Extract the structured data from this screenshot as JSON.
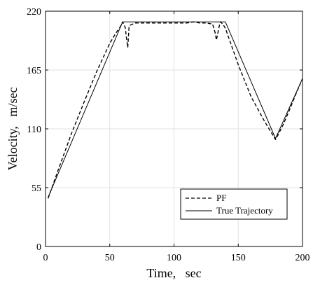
{
  "chart_data": {
    "type": "line",
    "xlabel": "Time,   sec",
    "ylabel": "Velocity,   m/sec",
    "xlim": [
      0,
      200
    ],
    "ylim": [
      0,
      220
    ],
    "xticks": [
      0,
      50,
      100,
      150,
      200
    ],
    "yticks": [
      0,
      55,
      110,
      165,
      220
    ],
    "xtick_labels": [
      "0",
      "50",
      "100",
      "150",
      "200"
    ],
    "ytick_labels": [
      "0",
      "55",
      "110",
      "165",
      "220"
    ],
    "grid": true,
    "legend": {
      "placement": "bottom-right",
      "entries": [
        {
          "label": "PF",
          "style": "dashed"
        },
        {
          "label": "True Trajectory",
          "style": "solid"
        }
      ]
    },
    "series": [
      {
        "name": "PF",
        "style": "dashed",
        "color": "#000000",
        "x": [
          2,
          5,
          10,
          20,
          30,
          40,
          50,
          55,
          58,
          60,
          62,
          63,
          64,
          65,
          66,
          68,
          70,
          80,
          90,
          100,
          110,
          115,
          120,
          125,
          130,
          132,
          133,
          134,
          135,
          136,
          138,
          140,
          150,
          160,
          170,
          178,
          179,
          180,
          185,
          190,
          195,
          200
        ],
        "y": [
          45,
          55,
          72,
          105,
          135,
          164,
          190,
          200,
          205,
          210,
          205,
          195,
          186,
          205,
          207,
          208,
          209,
          209,
          209,
          209,
          209,
          210,
          209,
          209,
          208,
          200,
          193,
          199,
          205,
          210,
          208,
          204,
          170,
          140,
          118,
          102,
          100,
          102,
          114,
          128,
          143,
          157
        ]
      },
      {
        "name": "True Trajectory",
        "style": "solid",
        "color": "#000000",
        "x": [
          2,
          60,
          140,
          179,
          200
        ],
        "y": [
          46,
          210,
          210,
          101,
          157
        ]
      }
    ]
  }
}
